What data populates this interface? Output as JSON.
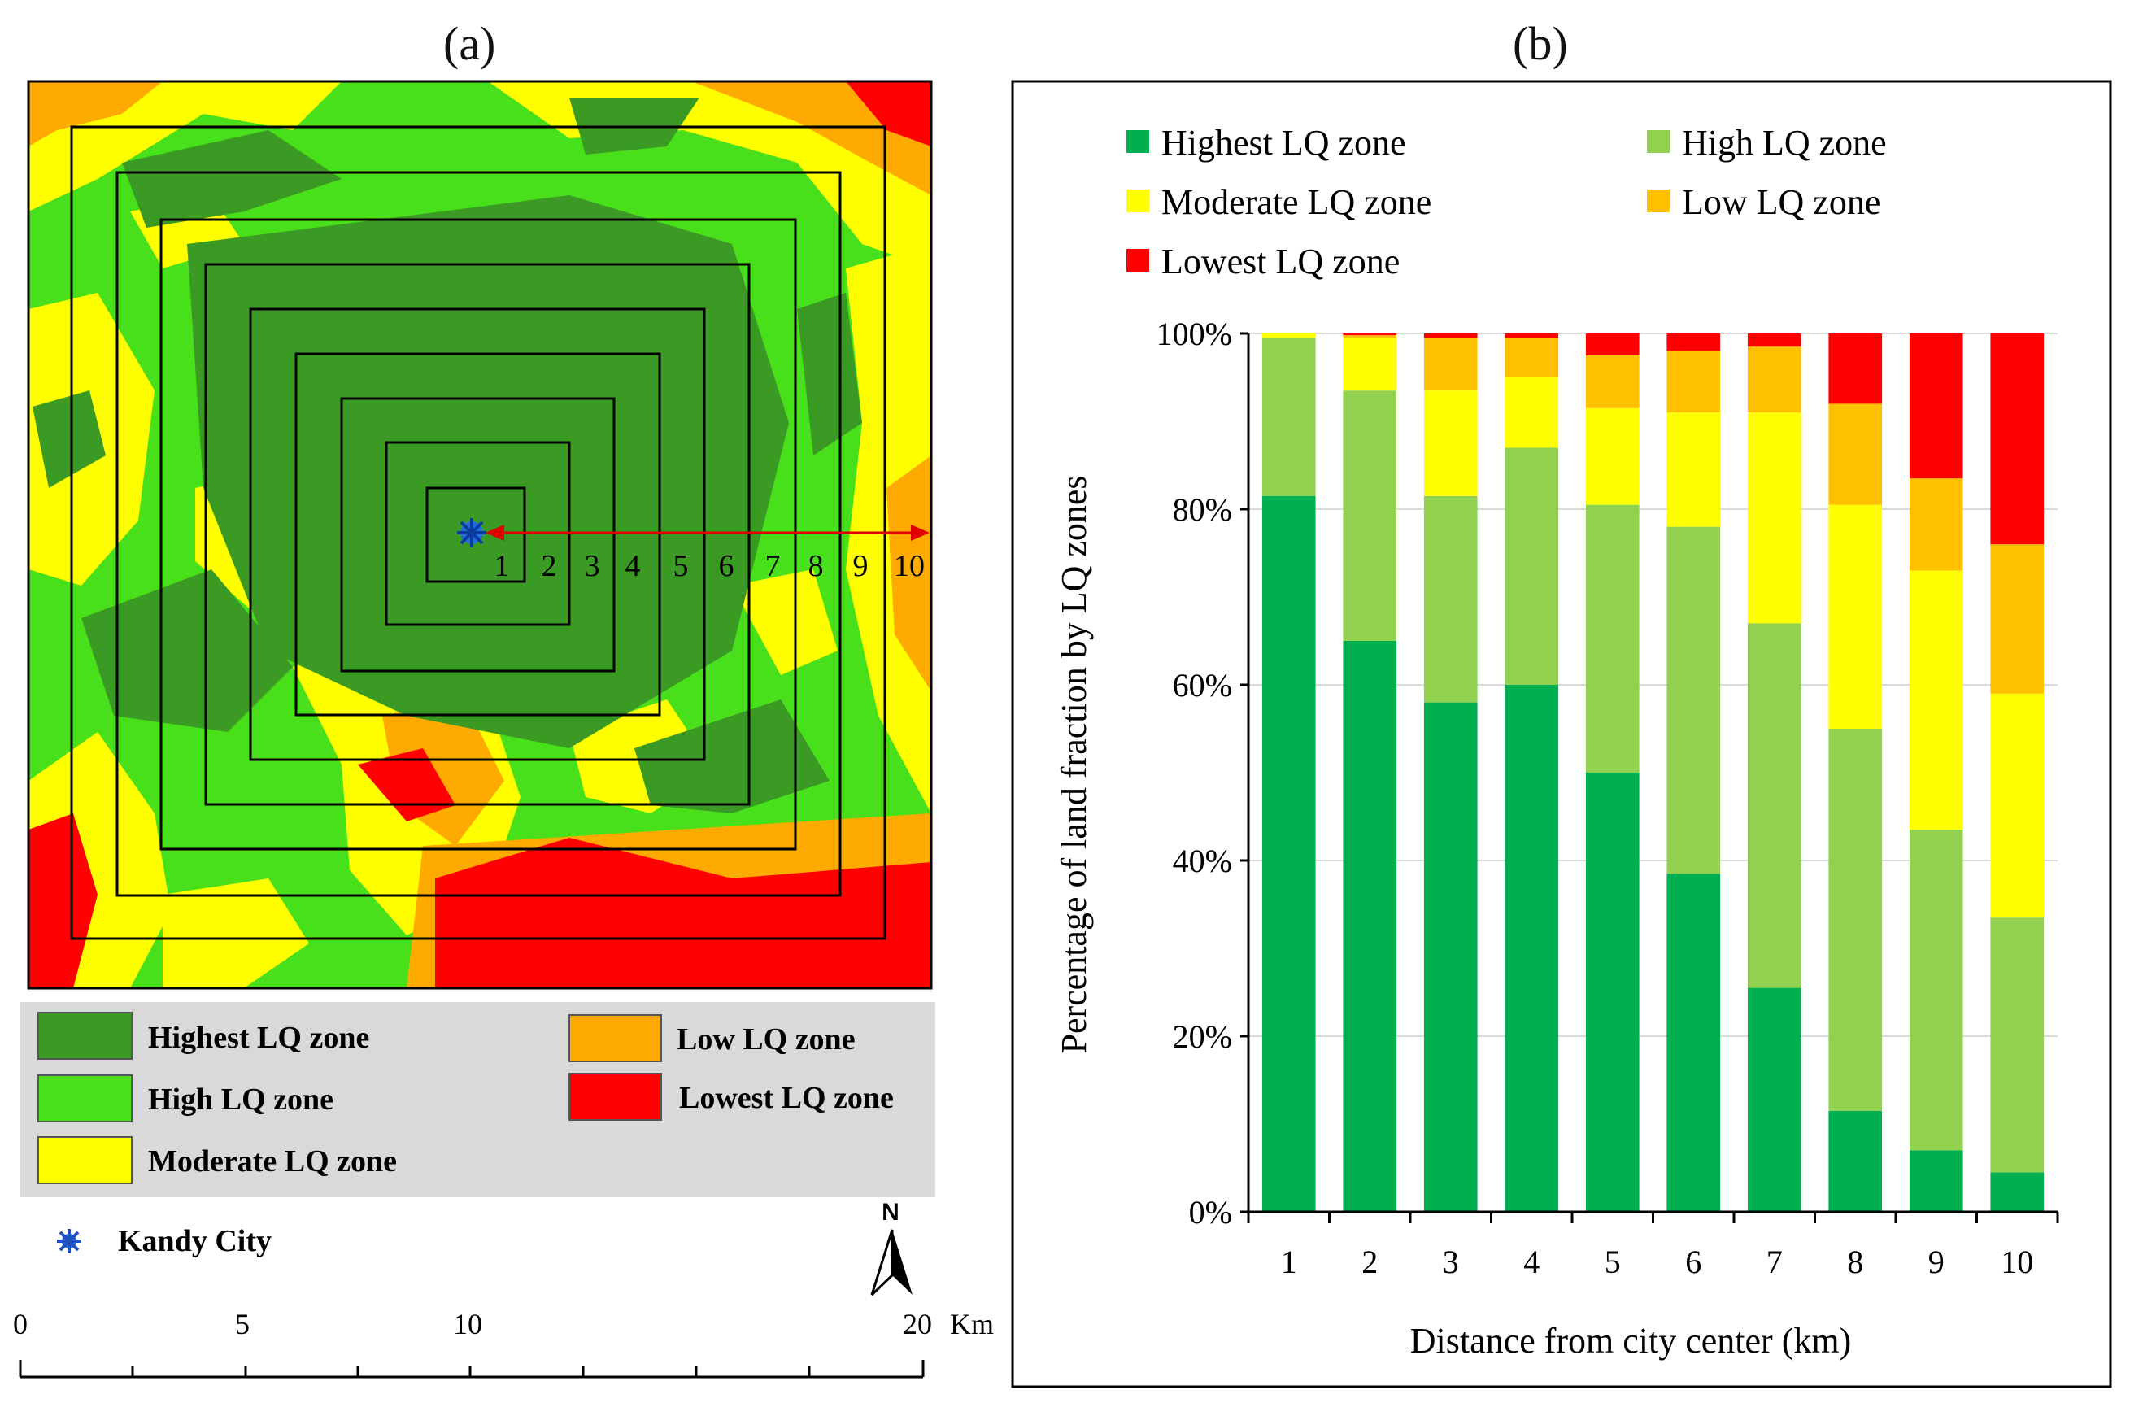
{
  "panel_a": {
    "label": "(a)",
    "ring_labels": [
      "1",
      "2",
      "3",
      "4",
      "5",
      "6",
      "7",
      "8",
      "9",
      "10"
    ],
    "legend": [
      {
        "label": "Highest LQ zone",
        "color": "#3a9a23"
      },
      {
        "label": "High LQ zone",
        "color": "#47e01a"
      },
      {
        "label": "Moderate LQ zone",
        "color": "#ffff00"
      },
      {
        "label": "Low LQ zone",
        "color": "#ffaa00"
      },
      {
        "label": "Lowest LQ zone",
        "color": "#ff0000"
      }
    ],
    "city_label": "Kandy City",
    "north_label": "N",
    "scale_labels": [
      "0",
      "5",
      "10",
      "20",
      "Km"
    ]
  },
  "panel_b": {
    "label": "(b)"
  },
  "chart_data": {
    "type": "bar",
    "stacked": true,
    "title": "",
    "xlabel": "Distance from city center (km)",
    "ylabel": "Percentage of land fraction by LQ zones",
    "ylim": [
      0,
      100
    ],
    "yticks": [
      "0%",
      "20%",
      "40%",
      "60%",
      "80%",
      "100%"
    ],
    "categories": [
      "1",
      "2",
      "3",
      "4",
      "5",
      "6",
      "7",
      "8",
      "9",
      "10"
    ],
    "legend_position": "top",
    "series": [
      {
        "name": "Highest LQ zone",
        "color": "#00b050",
        "values": [
          81.5,
          65,
          58,
          60,
          50,
          38.5,
          25.5,
          11.5,
          7,
          4.5
        ]
      },
      {
        "name": "High LQ zone",
        "color": "#92d050",
        "values": [
          18,
          28.5,
          23.5,
          27,
          30.5,
          39.5,
          41.5,
          43.5,
          36.5,
          29
        ]
      },
      {
        "name": "Moderate LQ zone",
        "color": "#ffff00",
        "values": [
          0.5,
          6,
          12,
          8,
          11,
          13,
          24,
          25.5,
          29.5,
          25.5
        ]
      },
      {
        "name": "Low LQ zone",
        "color": "#ffc000",
        "values": [
          0,
          0.3,
          6,
          4.5,
          6,
          7,
          7.5,
          11.5,
          10.5,
          17
        ]
      },
      {
        "name": "Lowest LQ zone",
        "color": "#ff0000",
        "values": [
          0,
          0.2,
          0.5,
          0.5,
          2.5,
          2,
          1.5,
          8,
          16.5,
          24
        ]
      }
    ]
  }
}
